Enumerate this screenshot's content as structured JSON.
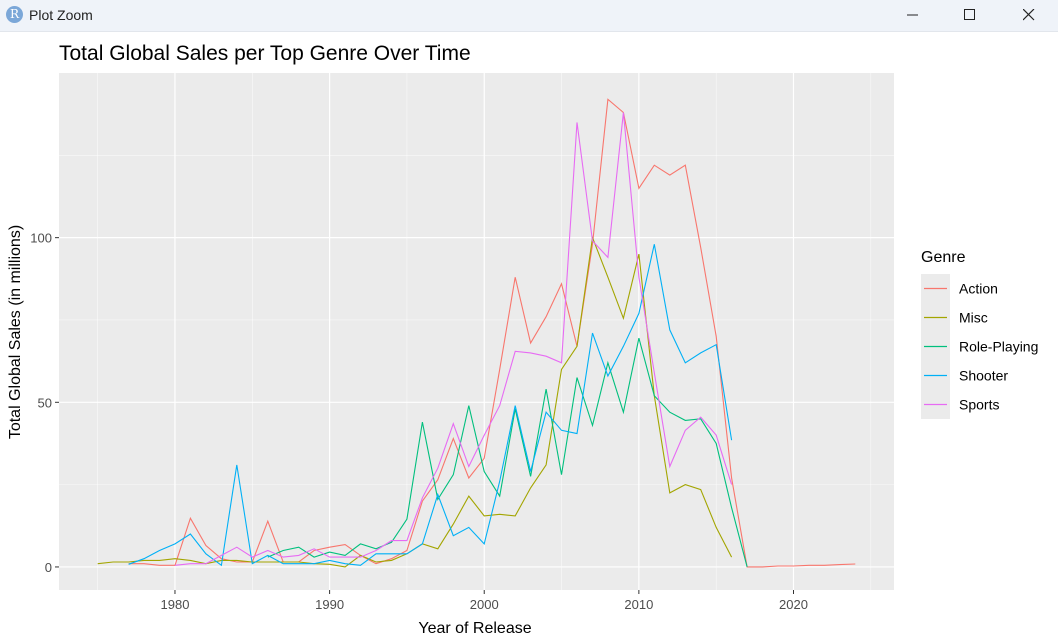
{
  "window": {
    "icon_letter": "R",
    "title": "Plot Zoom"
  },
  "chart_data": {
    "type": "line",
    "title": "Total Global Sales per Top Genre Over Time",
    "xlabel": "Year of Release",
    "ylabel": "Total Global Sales (in millions)",
    "xlim": [
      1972.5,
      2026.5
    ],
    "ylim": [
      -7,
      150
    ],
    "x_ticks": [
      1980,
      1990,
      2000,
      2010,
      2020
    ],
    "y_ticks": [
      0,
      50,
      100
    ],
    "grid": true,
    "legend": {
      "title": "Genre",
      "position": "right"
    },
    "colors": {
      "panel": "#ebebeb",
      "grid_major": "#ffffff",
      "axis_text": "#4d4d4d"
    },
    "series": [
      {
        "name": "Action",
        "color": "#F8766D",
        "x": [
          1977,
          1978,
          1979,
          1980,
          1981,
          1982,
          1983,
          1984,
          1985,
          1986,
          1987,
          1988,
          1989,
          1990,
          1991,
          1992,
          1993,
          1994,
          1995,
          1996,
          1997,
          1998,
          1999,
          2000,
          2001,
          2002,
          2003,
          2004,
          2005,
          2006,
          2007,
          2008,
          2009,
          2010,
          2011,
          2012,
          2013,
          2014,
          2015,
          2016,
          2017,
          2018,
          2019,
          2020,
          2021,
          2022,
          2023,
          2024
        ],
        "values": [
          1,
          1,
          0.5,
          0.5,
          14.8,
          6.5,
          2.5,
          1.5,
          1.5,
          13.9,
          1.5,
          1.5,
          5,
          6,
          6.8,
          3.5,
          1,
          2.5,
          5,
          20,
          26.5,
          39,
          27,
          33,
          60,
          88,
          68,
          76,
          86,
          67,
          98,
          142,
          138,
          115,
          122,
          119,
          122,
          97,
          70,
          27,
          0,
          0,
          0.3,
          0.3,
          0.5,
          0.5,
          0.7,
          0.9
        ]
      },
      {
        "name": "Misc",
        "color": "#A3A500",
        "x": [
          1975,
          1976,
          1977,
          1978,
          1979,
          1980,
          1981,
          1982,
          1983,
          1984,
          1985,
          1986,
          1987,
          1988,
          1989,
          1990,
          1991,
          1992,
          1993,
          1994,
          1995,
          1996,
          1997,
          1998,
          1999,
          2000,
          2001,
          2002,
          2003,
          2004,
          2005,
          2006,
          2007,
          2008,
          2009,
          2010,
          2011,
          2012,
          2013,
          2014,
          2015,
          2016
        ],
        "values": [
          1,
          1.5,
          1.5,
          2,
          2,
          2.5,
          2,
          1,
          2,
          2,
          1.5,
          1.5,
          1.5,
          1.5,
          1,
          0.8,
          0,
          3.5,
          1.5,
          2,
          4,
          7,
          5.5,
          13,
          21.5,
          15.5,
          16,
          15.5,
          24,
          31,
          60,
          67,
          100,
          88,
          75.5,
          95,
          52,
          22.5,
          25,
          23.5,
          12,
          3
        ]
      },
      {
        "name": "Role-Playing",
        "color": "#00BF7D",
        "x": [
          1986,
          1987,
          1988,
          1989,
          1990,
          1991,
          1992,
          1993,
          1994,
          1995,
          1996,
          1997,
          1998,
          1999,
          2000,
          2001,
          2002,
          2003,
          2004,
          2005,
          2006,
          2007,
          2008,
          2009,
          2010,
          2011,
          2012,
          2013,
          2014,
          2015,
          2016,
          2017
        ],
        "values": [
          3,
          5,
          6,
          3,
          4.5,
          3.5,
          7,
          5.5,
          7.5,
          14.5,
          44,
          20.5,
          28,
          49,
          29,
          21.5,
          48,
          27.5,
          54,
          28,
          57.5,
          43,
          62,
          47,
          69.5,
          52,
          47,
          44.5,
          45,
          37.5,
          18,
          0
        ]
      },
      {
        "name": "Shooter",
        "color": "#00B0F6",
        "x": [
          1977,
          1978,
          1979,
          1980,
          1981,
          1982,
          1983,
          1984,
          1985,
          1986,
          1987,
          1988,
          1989,
          1990,
          1991,
          1992,
          1993,
          1994,
          1995,
          1996,
          1997,
          1998,
          1999,
          2000,
          2001,
          2002,
          2003,
          2004,
          2005,
          2006,
          2007,
          2008,
          2009,
          2010,
          2011,
          2012,
          2013,
          2014,
          2015,
          2016
        ],
        "values": [
          0.8,
          2.5,
          5,
          7,
          10,
          4,
          0.5,
          31,
          1,
          3.5,
          1,
          1,
          1,
          2,
          1,
          0.5,
          4,
          4,
          4,
          7,
          22,
          9.5,
          12,
          7,
          26,
          49,
          29,
          47,
          41.5,
          40.5,
          71,
          58,
          67,
          77,
          98,
          72,
          62,
          65,
          67.5,
          38.5
        ]
      },
      {
        "name": "Sports",
        "color": "#E76BF3",
        "x": [
          1980,
          1981,
          1982,
          1983,
          1984,
          1985,
          1986,
          1987,
          1988,
          1989,
          1990,
          1991,
          1992,
          1993,
          1994,
          1995,
          1996,
          1997,
          1998,
          1999,
          2000,
          2001,
          2002,
          2003,
          2004,
          2005,
          2006,
          2007,
          2008,
          2009,
          2010,
          2011,
          2012,
          2013,
          2014,
          2015,
          2016
        ],
        "values": [
          0.5,
          1,
          1,
          3.5,
          6,
          3,
          5,
          3,
          3.5,
          5.5,
          3,
          3,
          3,
          5,
          8,
          8,
          21,
          30,
          43.5,
          30.5,
          40,
          49,
          65.5,
          65,
          64,
          62,
          135,
          99,
          94,
          138,
          88,
          59,
          30.5,
          41.5,
          45.5,
          40,
          25
        ]
      }
    ]
  }
}
